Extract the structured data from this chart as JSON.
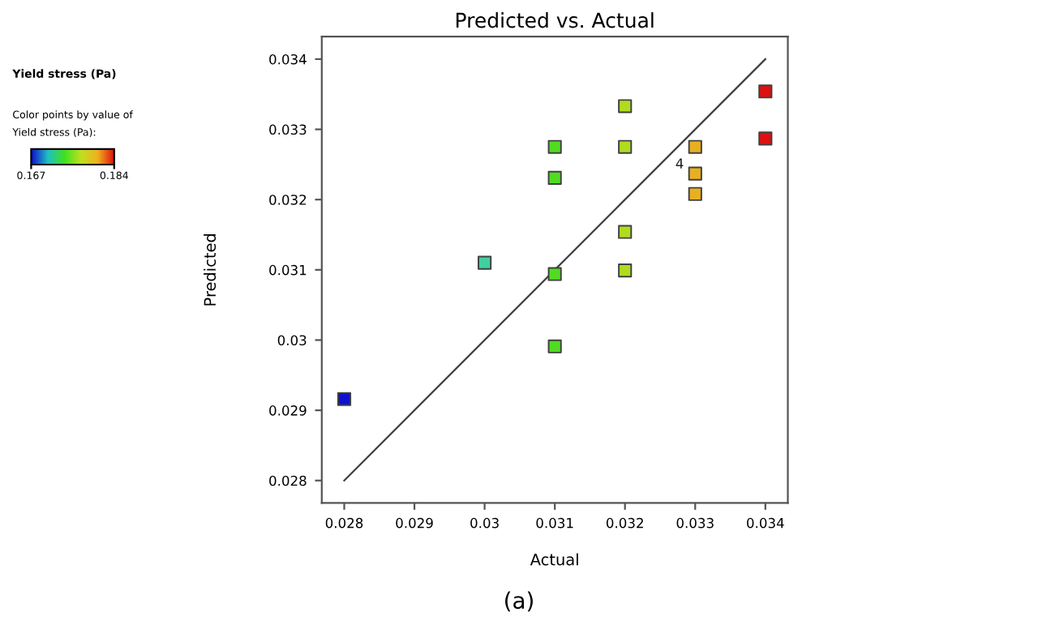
{
  "chart_data": {
    "type": "scatter",
    "title": "Predicted vs. Actual",
    "xlabel": "Actual",
    "ylabel": "Predicted",
    "legend_title": "Yield stress (Pa)",
    "clabel": "Color points by value of\nYield stress (Pa):",
    "series": [
      {
        "x": [
          0.028,
          0.03,
          0.031,
          0.031,
          0.031,
          0.031,
          0.032,
          0.032,
          0.032,
          0.032,
          0.033,
          0.033,
          0.033,
          0.034,
          0.034
        ],
        "values": [
          0.02916,
          0.0311,
          0.03275,
          0.03231,
          0.03094,
          0.02991,
          0.03333,
          0.03275,
          0.03154,
          0.03099,
          0.03275,
          0.03237,
          0.03208,
          0.03354,
          0.03287
        ],
        "colors": [
          "#1010d0",
          "#40d0a0",
          "#50dc20",
          "#50dc20",
          "#50dc20",
          "#50dc20",
          "#b0dc20",
          "#b0dc20",
          "#b0dc20",
          "#b0dc20",
          "#e8b020",
          "#e8b020",
          "#e8b020",
          "#e01010",
          "#e01010"
        ],
        "marker": "square"
      },
      {
        "type": "line",
        "x": [
          0.028,
          0.034
        ],
        "values": [
          0.028,
          0.034
        ],
        "color": "#404040"
      }
    ],
    "clim": [
      0.167,
      0.184
    ],
    "cticks": [
      0.167,
      0.184
    ],
    "xlim": [
      0.02768,
      0.03432
    ],
    "ylim": [
      0.02768,
      0.03432
    ],
    "xticks": [
      0.028,
      0.029,
      0.03,
      0.031,
      0.032,
      0.033,
      0.034
    ],
    "yticks": [
      0.028,
      0.029,
      0.03,
      0.031,
      0.032,
      0.033,
      0.034
    ],
    "grid": false,
    "legend": false,
    "annotations": [
      {
        "text": "4",
        "x": 0.033,
        "y": 0.03275
      },
      "(a)"
    ]
  }
}
